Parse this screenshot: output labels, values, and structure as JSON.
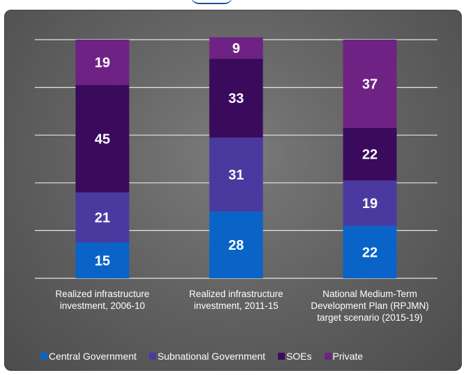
{
  "chart_data": {
    "type": "bar",
    "stacked": true,
    "percent_stacked": true,
    "categories": [
      [
        "Realized infrastructure",
        "investment, 2006-10"
      ],
      [
        "Realized infrastructure",
        "investment, 2011-15"
      ],
      [
        "National Medium-Term",
        "Development Plan (RPJMN)",
        "target scenario (2015-19)"
      ]
    ],
    "series": [
      {
        "name": "Central Government",
        "color": "#0a64c8",
        "values": [
          15,
          28,
          22
        ]
      },
      {
        "name": "Subnational Government",
        "color": "#4a3aa0",
        "values": [
          21,
          31,
          19
        ]
      },
      {
        "name": "SOEs",
        "color": "#3a0a5c",
        "values": [
          45,
          33,
          22
        ]
      },
      {
        "name": "Private",
        "color": "#6e2284",
        "values": [
          19,
          9,
          37
        ]
      }
    ],
    "ylim": [
      0,
      100
    ],
    "grid": true,
    "legend_position": "bottom"
  }
}
